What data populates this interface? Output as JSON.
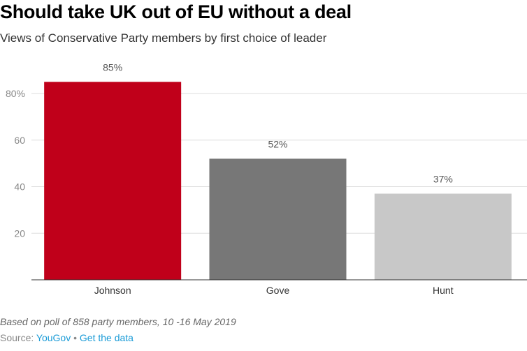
{
  "chart_data": {
    "type": "bar",
    "title": "Should take UK out of EU without a deal",
    "subtitle": "Views of Conservative Party members by first choice of leader",
    "categories": [
      "Johnson",
      "Gove",
      "Hunt"
    ],
    "values": [
      85,
      52,
      37
    ],
    "data_labels": [
      "85%",
      "52%",
      "37%"
    ],
    "colors": [
      "#c0001a",
      "#777777",
      "#c8c8c8"
    ],
    "ylim": [
      0,
      80
    ],
    "yticks": [
      20,
      40,
      60,
      80
    ],
    "ytick_labels": [
      "20",
      "40",
      "60",
      "80%"
    ],
    "grid": true,
    "xlabel": "",
    "ylabel": ""
  },
  "footer": {
    "note": "Based on poll of 858 party members, 10 -16 May 2019",
    "source_prefix": "Source: ",
    "source_link": "YouGov",
    "separator": " • ",
    "data_link": "Get the data"
  }
}
